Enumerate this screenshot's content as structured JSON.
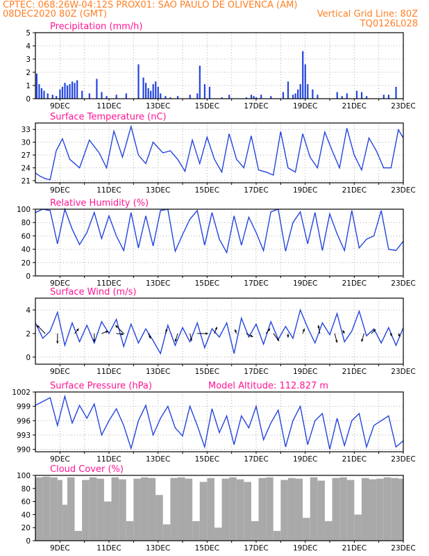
{
  "header": {
    "line1_left": "CPTEC:  068:26W-04:12S  PROX01: SAO PAULO DE OLIVENCA (AM)",
    "line2_left": "08DEC2020 80Z (GMT)",
    "line2_right": "Vertical Grid Line: 80Z",
    "line3_right": "TQ0126L028"
  },
  "x_tick_labels": [
    "9DEC",
    "11DEC",
    "13DEC",
    "15DEC",
    "17DEC",
    "19DEC",
    "21DEC",
    "23DEC"
  ],
  "colors": {
    "series": "#2244dd",
    "header": "#ff7f24",
    "title": "#ff1493",
    "cloud": "#a9a9a9"
  },
  "chart_data": [
    {
      "type": "bar",
      "title": "Precipitation (mm/h)",
      "ylim": [
        0,
        5
      ],
      "yticks": [
        "0",
        "1",
        "2",
        "3",
        "4",
        "5"
      ],
      "xlim": [
        8.0,
        23.0
      ],
      "grid": true,
      "x": [
        8.05,
        8.15,
        8.25,
        8.35,
        8.5,
        8.7,
        8.85,
        9.0,
        9.1,
        9.2,
        9.3,
        9.4,
        9.5,
        9.6,
        9.7,
        9.9,
        10.2,
        10.5,
        10.7,
        10.9,
        11.3,
        11.7,
        12.2,
        12.4,
        12.5,
        12.6,
        12.7,
        12.8,
        12.9,
        13.0,
        13.1,
        13.3,
        13.5,
        13.8,
        14.3,
        14.6,
        14.7,
        14.9,
        15.1,
        15.6,
        15.9,
        16.6,
        16.8,
        16.9,
        17.0,
        17.2,
        17.6,
        18.1,
        18.3,
        18.5,
        18.6,
        18.7,
        18.8,
        18.9,
        19.0,
        19.1,
        19.3,
        19.5,
        20.3,
        20.5,
        20.7,
        21.1,
        21.3,
        21.5,
        22.2,
        22.4,
        22.7
      ],
      "values": [
        1.9,
        1.1,
        0.8,
        0.6,
        0.4,
        0.3,
        0.2,
        0.7,
        0.9,
        1.2,
        1.0,
        1.1,
        1.3,
        1.2,
        1.4,
        0.6,
        0.4,
        1.5,
        0.5,
        0.2,
        0.3,
        0.4,
        2.6,
        1.6,
        1.2,
        0.8,
        0.6,
        1.1,
        1.3,
        0.9,
        0.4,
        0.2,
        0.1,
        0.2,
        0.3,
        0.4,
        2.5,
        1.1,
        0.9,
        0.1,
        0.3,
        0.1,
        0.3,
        0.2,
        0.1,
        0.3,
        0.2,
        0.5,
        1.3,
        0.3,
        0.4,
        0.7,
        1.1,
        3.6,
        2.6,
        1.1,
        0.7,
        0.3,
        0.5,
        0.2,
        0.4,
        0.6,
        0.5,
        0.2,
        0.3,
        0.3,
        0.9
      ]
    },
    {
      "type": "line",
      "title": "Surface Temperature (nC)",
      "ylim": [
        20.5,
        34.5
      ],
      "yticks": [
        "21",
        "24",
        "27",
        "30",
        "33"
      ],
      "grid": true,
      "x": [
        8.0,
        8.2,
        8.4,
        8.6,
        8.85,
        9.1,
        9.4,
        9.8,
        10.2,
        10.6,
        10.9,
        11.2,
        11.55,
        11.9,
        12.2,
        12.5,
        12.8,
        13.2,
        13.5,
        13.8,
        14.1,
        14.4,
        14.7,
        15.0,
        15.3,
        15.6,
        15.9,
        16.2,
        16.5,
        16.8,
        17.1,
        17.4,
        17.7,
        18.0,
        18.3,
        18.6,
        18.9,
        19.2,
        19.5,
        19.8,
        20.1,
        20.4,
        20.7,
        21.0,
        21.3,
        21.6,
        21.9,
        22.2,
        22.5,
        22.8,
        23.0
      ],
      "values": [
        22.8,
        22.0,
        21.5,
        21.2,
        28.0,
        30.8,
        26.0,
        24.0,
        30.5,
        27.5,
        24.0,
        32.6,
        26.5,
        33.7,
        27.0,
        25.0,
        30.0,
        27.5,
        28.0,
        26.0,
        23.2,
        30.5,
        25.0,
        31.2,
        26.0,
        23.0,
        32.0,
        26.0,
        24.0,
        31.5,
        23.5,
        23.0,
        22.3,
        32.5,
        24.0,
        23.0,
        32.0,
        26.5,
        24.0,
        32.4,
        28.0,
        24.0,
        33.3,
        27.0,
        23.5,
        31.0,
        28.0,
        24.0,
        24.0,
        32.9,
        31.0
      ]
    },
    {
      "type": "line",
      "title": "Relative Humidity (%)",
      "ylim": [
        0,
        100
      ],
      "yticks": [
        "0",
        "20",
        "40",
        "60",
        "80",
        "100"
      ],
      "grid": true,
      "x": [
        8.0,
        8.3,
        8.6,
        8.9,
        9.2,
        9.5,
        9.8,
        10.1,
        10.4,
        10.7,
        11.0,
        11.3,
        11.6,
        11.9,
        12.2,
        12.5,
        12.8,
        13.1,
        13.4,
        13.7,
        14.0,
        14.3,
        14.6,
        14.9,
        15.2,
        15.5,
        15.8,
        16.1,
        16.4,
        16.7,
        17.0,
        17.3,
        17.6,
        17.9,
        18.2,
        18.5,
        18.8,
        19.1,
        19.4,
        19.7,
        20.0,
        20.3,
        20.6,
        20.9,
        21.2,
        21.5,
        21.8,
        22.1,
        22.4,
        22.7,
        23.0
      ],
      "values": [
        95,
        100,
        98,
        48,
        100,
        70,
        47,
        65,
        95,
        56,
        90,
        60,
        38,
        95,
        42,
        90,
        45,
        98,
        100,
        37,
        62,
        85,
        98,
        46,
        95,
        55,
        35,
        90,
        46,
        88,
        65,
        38,
        96,
        100,
        37,
        80,
        96,
        48,
        95,
        38,
        93,
        63,
        38,
        98,
        42,
        55,
        60,
        98,
        40,
        38,
        52
      ]
    },
    {
      "type": "line",
      "title": "Surface Wind (m/s)",
      "ylim": [
        -0.6,
        5.0
      ],
      "yticks": [
        "0",
        "2",
        "4"
      ],
      "grid": true,
      "x": [
        8.0,
        8.3,
        8.6,
        8.9,
        9.2,
        9.5,
        9.8,
        10.1,
        10.4,
        10.7,
        11.0,
        11.3,
        11.6,
        11.9,
        12.2,
        12.5,
        12.8,
        13.1,
        13.4,
        13.7,
        14.0,
        14.3,
        14.6,
        14.9,
        15.2,
        15.5,
        15.8,
        16.1,
        16.4,
        16.7,
        17.0,
        17.3,
        17.6,
        17.9,
        18.2,
        18.5,
        18.8,
        19.1,
        19.4,
        19.7,
        20.0,
        20.3,
        20.6,
        20.9,
        21.2,
        21.5,
        21.8,
        22.1,
        22.4,
        22.7,
        23.0
      ],
      "values": [
        2.9,
        1.6,
        2.2,
        3.8,
        1.0,
        2.9,
        1.3,
        2.7,
        1.2,
        3.0,
        2.0,
        3.2,
        0.9,
        2.8,
        1.2,
        2.4,
        1.4,
        0.3,
        2.7,
        1.0,
        2.5,
        1.3,
        2.9,
        0.8,
        2.4,
        1.7,
        2.9,
        0.3,
        3.3,
        1.7,
        2.8,
        1.1,
        3.0,
        1.5,
        2.6,
        1.6,
        4.0,
        2.5,
        1.2,
        2.9,
        1.9,
        3.7,
        1.3,
        2.2,
        3.9,
        1.8,
        2.4,
        1.2,
        2.5,
        1.0,
        2.5
      ],
      "arrows_x": [
        8.4,
        8.9,
        9.6,
        10.4,
        10.7,
        11.3,
        11.6,
        12.6,
        13.3,
        13.8,
        14.3,
        14.6,
        15.3,
        16.2,
        16.6,
        17.4,
        17.7,
        18.3,
        18.9,
        19.6,
        20.2,
        20.6,
        21.4,
        21.7,
        22.5,
        22.8
      ],
      "arrows_u": [
        -1.0,
        0.0,
        0.5,
        0.0,
        0.8,
        0.9,
        -1.0,
        0.3,
        0.2,
        -0.3,
        0.2,
        1.3,
        0.3,
        -0.2,
        0.8,
        0.5,
        0.7,
        0.0,
        0.2,
        -0.2,
        0.3,
        -0.2,
        -0.3,
        0.5,
        0.0,
        0.2
      ],
      "arrows_v": [
        1.0,
        -1.2,
        0.6,
        -1.0,
        0.3,
        -0.1,
        1.0,
        -0.6,
        0.6,
        -1.0,
        -0.9,
        0.0,
        0.8,
        0.5,
        -0.4,
        0.6,
        -0.9,
        -0.5,
        0.6,
        1.0,
        -1.1,
        0.4,
        -1.0,
        0.5,
        -0.3,
        -0.4
      ]
    },
    {
      "type": "line",
      "title": "Surface Pressure (hPa)",
      "annotation": "Model Altitude: 112.827 m",
      "ylim": [
        989.5,
        1002.0
      ],
      "yticks": [
        "990",
        "993",
        "996",
        "999",
        "1002"
      ],
      "grid": true,
      "x": [
        8.0,
        8.3,
        8.6,
        8.9,
        9.2,
        9.5,
        9.8,
        10.1,
        10.4,
        10.7,
        11.0,
        11.3,
        11.6,
        11.9,
        12.2,
        12.5,
        12.8,
        13.1,
        13.4,
        13.7,
        14.0,
        14.3,
        14.6,
        14.9,
        15.2,
        15.5,
        15.8,
        16.1,
        16.4,
        16.7,
        17.0,
        17.3,
        17.6,
        17.9,
        18.2,
        18.5,
        18.8,
        19.1,
        19.4,
        19.7,
        20.0,
        20.3,
        20.6,
        20.9,
        21.2,
        21.5,
        21.8,
        22.1,
        22.4,
        22.7,
        23.0
      ],
      "values": [
        999.2,
        1000.0,
        1000.8,
        995.0,
        1001.1,
        995.5,
        999.2,
        996.5,
        999.5,
        993.0,
        996.0,
        998.5,
        995.0,
        990.2,
        996.0,
        999.2,
        993.0,
        996.5,
        999.0,
        994.5,
        992.8,
        999.0,
        995.0,
        990.5,
        998.5,
        993.5,
        997.0,
        991.0,
        997.0,
        994.5,
        999.0,
        992.0,
        995.5,
        998.2,
        990.5,
        996.0,
        999.0,
        991.0,
        996.0,
        997.5,
        990.0,
        996.5,
        990.8,
        996.0,
        997.5,
        990.5,
        995.0,
        996.0,
        997.0,
        990.5,
        991.8
      ]
    },
    {
      "type": "area",
      "title": "Cloud Cover (%)",
      "ylim": [
        0,
        100
      ],
      "yticks": [
        "0",
        "20",
        "40",
        "60",
        "80",
        "100"
      ],
      "grid": false,
      "x": [
        8.0,
        8.3,
        8.6,
        8.9,
        9.1,
        9.3,
        9.6,
        9.9,
        10.2,
        10.5,
        10.8,
        11.1,
        11.4,
        11.7,
        12.0,
        12.3,
        12.6,
        12.9,
        13.2,
        13.5,
        13.8,
        14.1,
        14.4,
        14.7,
        15.0,
        15.3,
        15.6,
        15.9,
        16.2,
        16.5,
        16.8,
        17.1,
        17.4,
        17.7,
        18.0,
        18.3,
        18.6,
        18.9,
        19.2,
        19.5,
        19.8,
        20.1,
        20.4,
        20.7,
        21.0,
        21.3,
        21.6,
        21.9,
        22.2,
        22.5,
        22.8,
        23.0
      ],
      "values": [
        97,
        98,
        97,
        93,
        55,
        97,
        15,
        93,
        97,
        95,
        60,
        97,
        94,
        30,
        95,
        97,
        96,
        70,
        25,
        96,
        97,
        95,
        30,
        90,
        96,
        20,
        95,
        97,
        94,
        90,
        30,
        96,
        97,
        15,
        93,
        96,
        95,
        35,
        97,
        92,
        30,
        96,
        97,
        93,
        40,
        96,
        94,
        95,
        97,
        96,
        95,
        97
      ]
    }
  ]
}
